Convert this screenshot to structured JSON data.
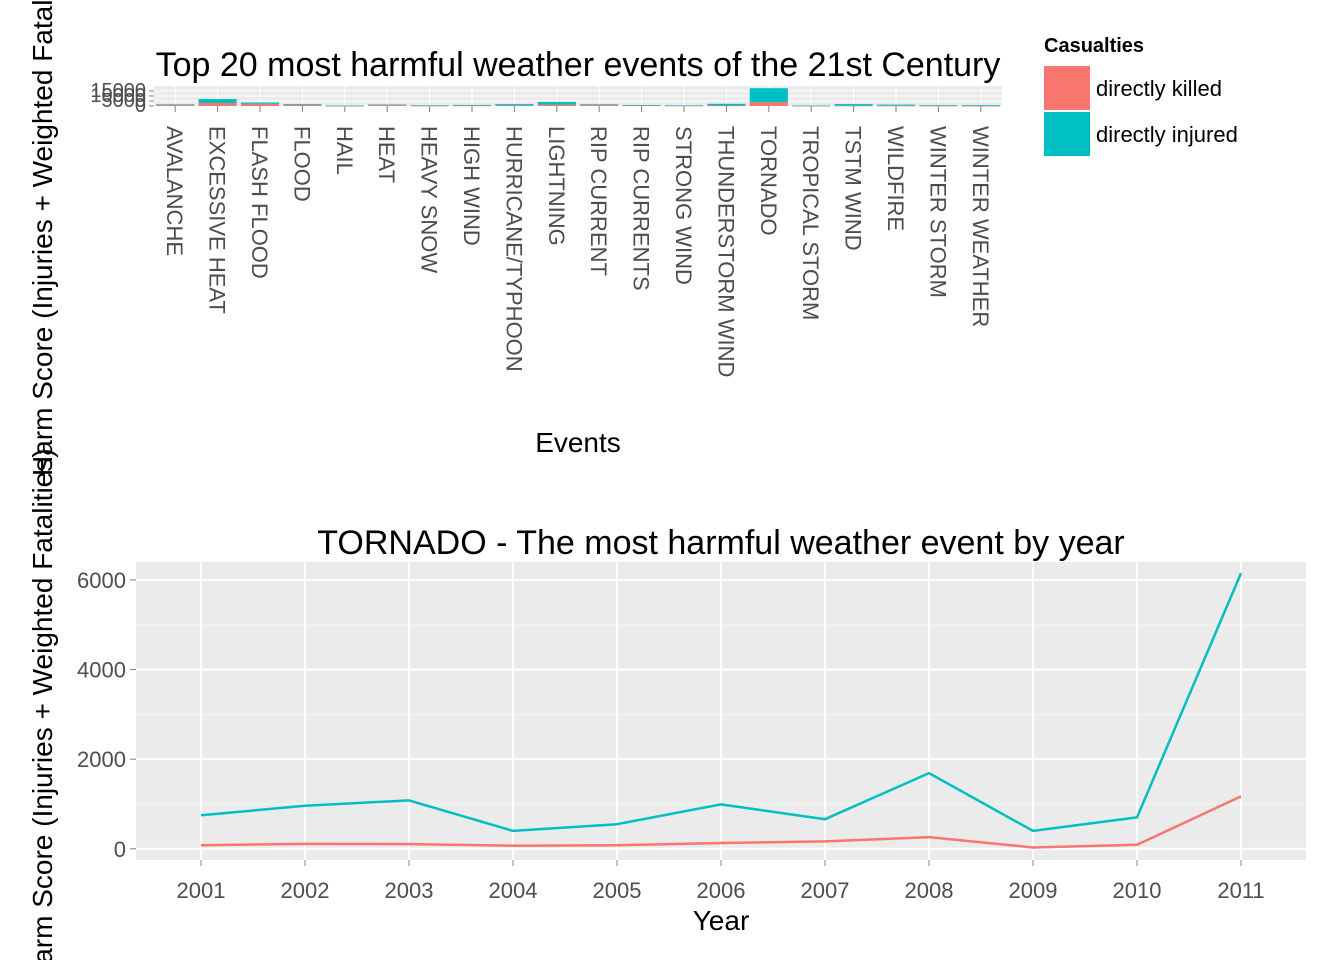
{
  "chart_data": [
    {
      "type": "bar",
      "stacked": true,
      "title": "Top 20 most harmful weather events of the 21st Century",
      "xlabel": "Events",
      "ylabel": "Harm Score (Injuries + Weighted Fatalities)",
      "ylim": [
        0,
        20000
      ],
      "y_ticks": [
        0,
        5000,
        10000,
        15000
      ],
      "grid": true,
      "legend_position": "right",
      "legend_title": "Casualties",
      "categories": [
        "AVALANCHE",
        "EXCESSIVE HEAT",
        "FLASH FLOOD",
        "FLOOD",
        "HAIL",
        "HEAT",
        "HEAVY SNOW",
        "HIGH WIND",
        "HURRICANE/TYPHOON",
        "LIGHTNING",
        "RIP CURRENT",
        "RIP CURRENTS",
        "STRONG WIND",
        "THUNDERSTORM WIND",
        "TORNADO",
        "TROPICAL STORM",
        "TSTM WIND",
        "WILDFIRE",
        "WINTER STORM",
        "WINTER WEATHER"
      ],
      "series": [
        {
          "name": "directly killed",
          "color": "#F8766D",
          "values": [
            1200,
            3000,
            2200,
            1300,
            100,
            900,
            300,
            400,
            600,
            1400,
            1300,
            700,
            300,
            500,
            3800,
            200,
            300,
            300,
            300,
            200
          ]
        },
        {
          "name": "directly injured",
          "color": "#00BFC4",
          "values": [
            500,
            4000,
            1300,
            700,
            300,
            600,
            600,
            700,
            1300,
            2700,
            500,
            300,
            300,
            1700,
            14000,
            200,
            1600,
            1100,
            700,
            800
          ]
        }
      ]
    },
    {
      "type": "line",
      "title": "TORNADO - The most harmful weather event by year",
      "xlabel": "Year",
      "ylabel": "Harm Score (Injuries + Weighted Fatalities)",
      "x": [
        2001,
        2002,
        2003,
        2004,
        2005,
        2006,
        2007,
        2008,
        2009,
        2010,
        2011
      ],
      "ylim": [
        -250,
        6400
      ],
      "y_ticks": [
        0,
        2000,
        4000,
        6000
      ],
      "grid": true,
      "series": [
        {
          "name": "directly killed",
          "color": "#F8766D",
          "values": [
            80,
            110,
            105,
            70,
            80,
            130,
            165,
            260,
            30,
            90,
            1170
          ]
        },
        {
          "name": "directly injured",
          "color": "#00BFC4",
          "values": [
            750,
            960,
            1080,
            400,
            550,
            990,
            660,
            1690,
            400,
            700,
            6150
          ]
        }
      ]
    }
  ]
}
